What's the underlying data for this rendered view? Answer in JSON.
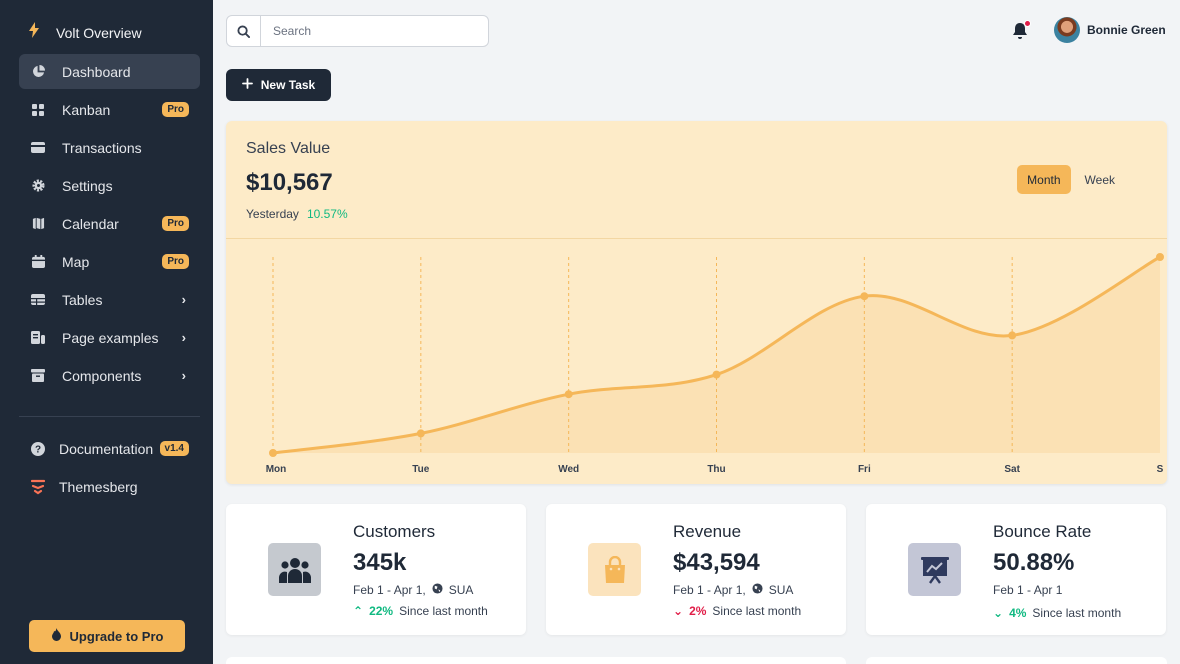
{
  "sidebar": {
    "brand": "Volt Overview",
    "items": [
      {
        "label": "Dashboard",
        "icon": "pie-chart-icon"
      },
      {
        "label": "Kanban",
        "icon": "grid-icon",
        "badge": "Pro"
      },
      {
        "label": "Transactions",
        "icon": "credit-card-icon"
      },
      {
        "label": "Settings",
        "icon": "gear-icon"
      },
      {
        "label": "Calendar",
        "icon": "calendar-icon",
        "badge": "Pro"
      },
      {
        "label": "Map",
        "icon": "map-icon",
        "badge": "Pro"
      },
      {
        "label": "Tables",
        "icon": "table-icon"
      },
      {
        "label": "Page examples",
        "icon": "page-icon"
      },
      {
        "label": "Components",
        "icon": "archive-icon"
      }
    ],
    "secondary": [
      {
        "label": "Documentation",
        "badge": "v1.4",
        "icon": "question-icon"
      },
      {
        "label": "Themesberg",
        "icon": "themesberg-logo-icon"
      }
    ],
    "upgrade_label": "Upgrade to Pro"
  },
  "topbar": {
    "search_placeholder": "Search",
    "user_name": "Bonnie Green"
  },
  "new_task_label": "New Task",
  "sales": {
    "title": "Sales Value",
    "amount": "$10,567",
    "period_label": "Yesterday",
    "period_change": "10.57%",
    "toggle": [
      "Month",
      "Week"
    ],
    "active_toggle": "Month"
  },
  "chart_data": {
    "type": "area",
    "categories": [
      "Mon",
      "Tue",
      "Wed",
      "Thu",
      "Fri",
      "Sat",
      "S"
    ],
    "values": [
      0,
      10,
      30,
      40,
      80,
      60,
      100
    ],
    "title": "",
    "xlabel": "",
    "ylabel": "",
    "grid": "vertical dashed",
    "color": "#f5b759"
  },
  "stats": [
    {
      "label": "Customers",
      "value": "345k",
      "range": "Feb 1 - Apr 1,",
      "region": "SUA",
      "change": "22%",
      "direction": "up",
      "since": "Since last month",
      "icon": "users-icon"
    },
    {
      "label": "Revenue",
      "value": "$43,594",
      "range": "Feb 1 - Apr 1,",
      "region": "SUA",
      "change": "2%",
      "direction": "down",
      "since": "Since last month",
      "icon": "shopping-bag-icon"
    },
    {
      "label": "Bounce Rate",
      "value": "50.88%",
      "range": "Feb 1 - Apr 1",
      "region": "",
      "change": "4%",
      "direction": "up",
      "since": "Since last month",
      "icon": "presentation-chart-icon"
    }
  ],
  "colors": {
    "sidebar_bg": "#1f2937",
    "accent": "#f5b759",
    "success": "#10b981",
    "danger": "#e11d48"
  }
}
